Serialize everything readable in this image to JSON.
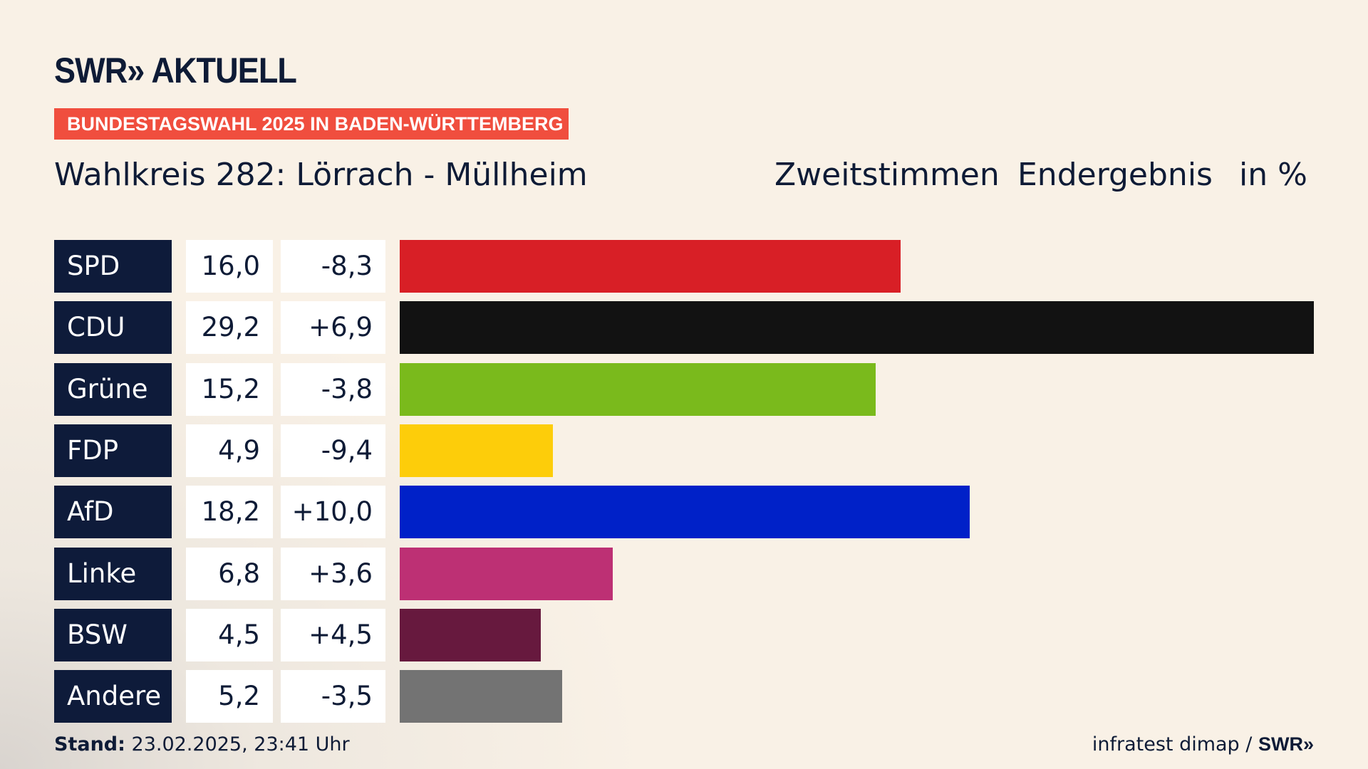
{
  "logo": "SWR» AKTUELL",
  "banner": "BUNDESTAGSWAHL 2025 IN BADEN-WÜRTTEMBERG",
  "title": "Wahlkreis 282: Lörrach - Müllheim",
  "header": {
    "vote_type": "Zweitstimmen",
    "status": "Endergebnis",
    "unit": "in %"
  },
  "footer": {
    "stand_label": "Stand:",
    "stand_value": "23.02.2025, 23:41 Uhr",
    "source": "infratest dimap /",
    "source_logo": "SWR»"
  },
  "chart_data": {
    "type": "bar",
    "orientation": "horizontal",
    "categories": [
      "SPD",
      "CDU",
      "Grüne",
      "FDP",
      "AfD",
      "Linke",
      "BSW",
      "Andere"
    ],
    "values": [
      16.0,
      29.2,
      15.2,
      4.9,
      18.2,
      6.8,
      4.5,
      5.2
    ],
    "value_labels": [
      "16,0",
      "29,2",
      "15,2",
      "4,9",
      "18,2",
      "6,8",
      "4,5",
      "5,2"
    ],
    "diff_labels": [
      "-8,3",
      "+6,9",
      "-3,8",
      "-9,4",
      "+10,0",
      "+3,6",
      "+4,5",
      "-3,5"
    ],
    "diffs": [
      -8.3,
      6.9,
      -3.8,
      -9.4,
      10.0,
      3.6,
      4.5,
      -3.5
    ],
    "colors": [
      "#d81f26",
      "#121212",
      "#7aba1c",
      "#fdcd0a",
      "#0021c8",
      "#bd3074",
      "#67193e",
      "#737373"
    ],
    "xlim": [
      0,
      29.2
    ],
    "grid": false
  }
}
